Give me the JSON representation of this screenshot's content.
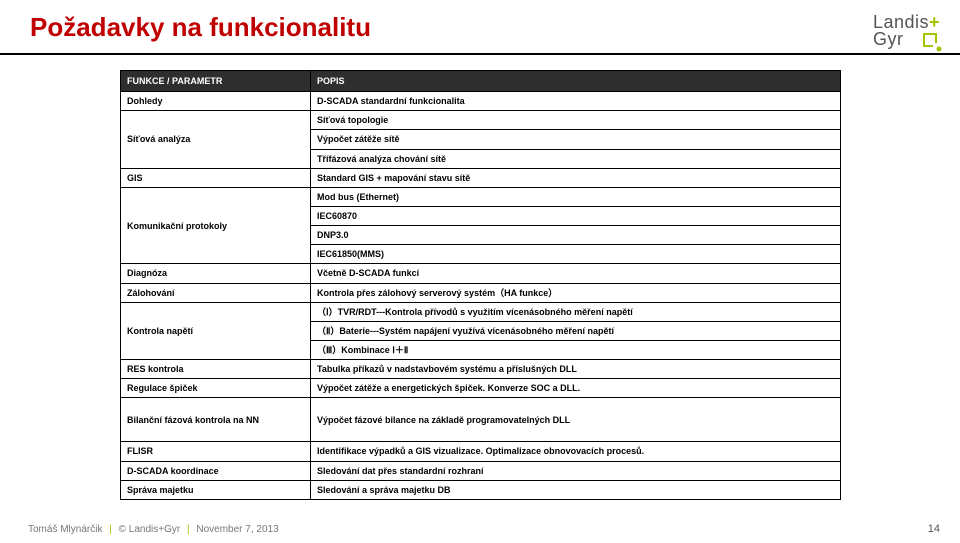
{
  "title": "Požadavky na funkcionalitu",
  "logo": {
    "line1": "Landis",
    "plus": "+",
    "line2": "Gyr"
  },
  "table": {
    "headers": [
      "FUNKCE / PARAMETR",
      "POPIS"
    ],
    "groups": [
      {
        "left": "Dohledy",
        "rights": [
          "D-SCADA standardní funkcionalita"
        ],
        "rowspan": 1
      },
      {
        "left": "Síťová analýza",
        "rights": [
          "Síťová topologie",
          "Výpočet zátěže sítě",
          "Třífázová analýza chování sítě"
        ],
        "rowspan": 3
      },
      {
        "left": "GIS",
        "rights": [
          "Standard GIS + mapování stavu sítě"
        ],
        "rowspan": 1
      },
      {
        "left": "Komunikační protokoly",
        "rights": [
          "Mod bus (Ethernet)",
          "IEC60870",
          "DNP3.0",
          "IEC61850(MMS)"
        ],
        "rowspan": 4
      },
      {
        "left": "Diagnóza",
        "rights": [
          "Včetně D-SCADA funkcí"
        ],
        "rowspan": 1
      },
      {
        "left": "Zálohování",
        "rights": [
          "Kontrola přes zálohový serverový systém（HA funkce）"
        ],
        "rowspan": 1
      },
      {
        "left": "Kontrola napětí",
        "rights": [
          "（Ⅰ）TVR/RDT---Kontrola přívodů s využitím vícenásobného měření napětí",
          "（Ⅱ）Baterie---Systém napájení využívá vícenásobného měření napětí",
          "（Ⅲ）Kombinace Ⅰ＋Ⅱ"
        ],
        "rowspan": 3
      },
      {
        "left": "RES kontrola",
        "rights": [
          "Tabulka příkazů v nadstavbovém systému a příslušných DLL"
        ],
        "rowspan": 1
      },
      {
        "left": "Regulace špiček",
        "rights": [
          "Výpočet zátěže a energetických špiček. Konverze SOC a DLL."
        ],
        "rowspan": 1
      },
      {
        "left": "Bilanční fázová kontrola na NN",
        "rights": [
          "Výpočet fázové bilance na základě programovatelných DLL"
        ],
        "rowspan": 1,
        "tall": true
      },
      {
        "left": "FLISR",
        "rights": [
          "Identifikace výpadků a GIS vizualizace. Optimalizace obnovovacích procesů."
        ],
        "rowspan": 1
      },
      {
        "left": "D-SCADA koordinace",
        "rights": [
          "Sledování dat přes standardní rozhraní"
        ],
        "rowspan": 1
      },
      {
        "left": "Správa majetku",
        "rights": [
          "Sledování a správa majetku DB"
        ],
        "rowspan": 1
      }
    ]
  },
  "footer": {
    "author": "Tomáš Mlynárčik",
    "company": "© Landis+Gyr",
    "date": "November 7, 2013"
  },
  "page": "14"
}
